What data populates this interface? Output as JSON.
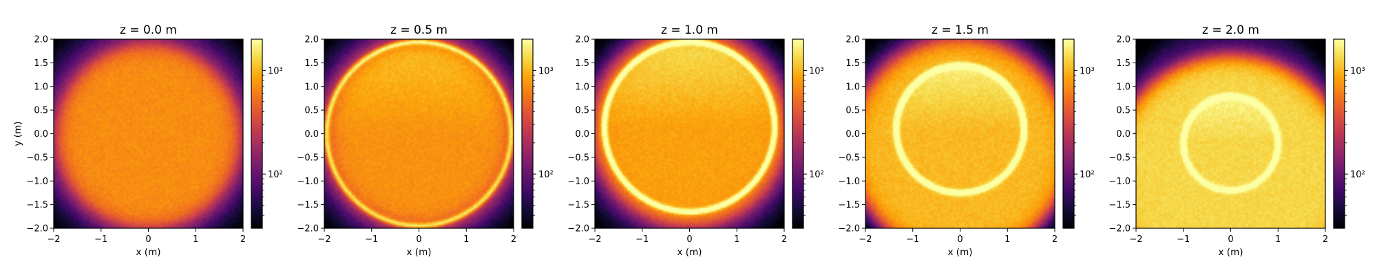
{
  "chart_data": {
    "type": "heatmap",
    "colormap": "inferno",
    "colorbar_scale": "log",
    "colorbar_tick_labels": [
      "10²",
      "10³"
    ],
    "colorbar_tick_values": [
      100,
      1000
    ],
    "colorbar_range": [
      30,
      2000
    ],
    "xlabel": "x (m)",
    "ylabel": "y (m)",
    "xlim": [
      -2,
      2
    ],
    "ylim": [
      -2,
      2
    ],
    "x_ticks": [
      -2,
      -1,
      0,
      1,
      2
    ],
    "x_tick_labels": [
      "−2",
      "−1",
      "0",
      "1",
      "2"
    ],
    "y_ticks": [
      2.0,
      1.5,
      1.0,
      0.5,
      0.0,
      -0.5,
      -1.0,
      -1.5,
      -2.0
    ],
    "y_tick_labels": [
      "2.0",
      "1.5",
      "1.0",
      "0.5",
      "0.0",
      "−0.5",
      "−1.0",
      "−1.5",
      "−2.0"
    ],
    "panels": [
      {
        "title": "z = 0.0 m",
        "beam_center_y": -0.05,
        "radius": 2.0,
        "ring_center_y": 0.0,
        "ring_radius": 2.05,
        "ring_intensity": 0.0,
        "fill_level": 0.75,
        "bg_level": 0.55
      },
      {
        "title": "z = 0.5 m",
        "beam_center_y": 0.0,
        "radius": 2.05,
        "ring_center_y": 0.0,
        "ring_radius": 1.95,
        "ring_intensity": 0.35,
        "fill_level": 0.76,
        "bg_level": 0.55
      },
      {
        "title": "z = 1.0 m",
        "beam_center_y": 0.1,
        "radius": 2.1,
        "ring_center_y": 0.15,
        "ring_radius": 1.8,
        "ring_intensity": 0.45,
        "fill_level": 0.79,
        "bg_level": 0.5
      },
      {
        "title": "z = 1.5 m",
        "beam_center_y": -0.3,
        "radius": 2.35,
        "ring_center_y": 0.1,
        "ring_radius": 1.35,
        "ring_intensity": 0.4,
        "fill_level": 0.84,
        "bg_level": 0.45
      },
      {
        "title": "z = 2.0 m",
        "beam_center_y": -0.9,
        "radius": 2.6,
        "ring_center_y": -0.2,
        "ring_radius": 1.0,
        "ring_intensity": 0.25,
        "fill_level": 0.9,
        "bg_level": 0.35
      }
    ]
  }
}
